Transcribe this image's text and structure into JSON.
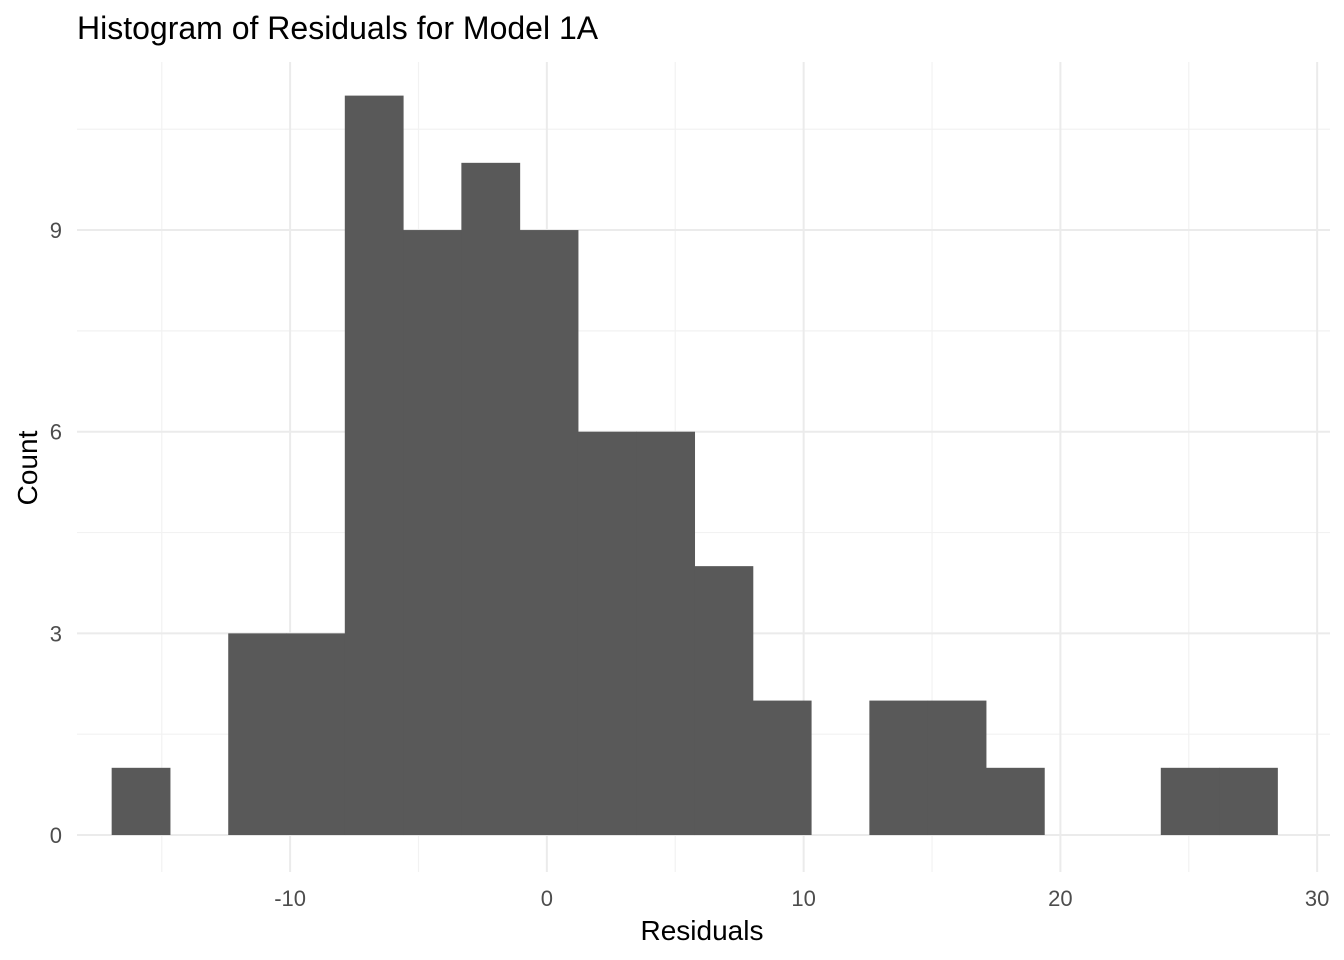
{
  "chart_data": {
    "type": "bar",
    "title": "Histogram of Residuals for Model 1A",
    "xlabel": "Residuals",
    "ylabel": "Count",
    "xlim": [
      -18.3,
      30.5
    ],
    "ylim": [
      -0.55,
      11.5
    ],
    "x_ticks": [
      -10,
      0,
      10,
      20,
      30
    ],
    "x_tick_labels": [
      "-10",
      "0",
      "10",
      "20",
      "30"
    ],
    "y_ticks": [
      0,
      3,
      6,
      9
    ],
    "y_tick_labels": [
      "0",
      "3",
      "6",
      "9"
    ],
    "grid": true,
    "bar_color": "#595959",
    "bins": [
      {
        "x0": -16.95,
        "x1": -14.68,
        "count": 1
      },
      {
        "x0": -14.68,
        "x1": -12.41,
        "count": 0
      },
      {
        "x0": -12.41,
        "x1": -10.14,
        "count": 3
      },
      {
        "x0": -10.14,
        "x1": -7.87,
        "count": 3
      },
      {
        "x0": -7.87,
        "x1": -5.6,
        "count": 11
      },
      {
        "x0": -5.6,
        "x1": -3.33,
        "count": 9
      },
      {
        "x0": -3.33,
        "x1": -1.06,
        "count": 10
      },
      {
        "x0": -1.06,
        "x1": 1.21,
        "count": 9
      },
      {
        "x0": 1.21,
        "x1": 3.48,
        "count": 6
      },
      {
        "x0": 3.48,
        "x1": 5.75,
        "count": 6
      },
      {
        "x0": 5.75,
        "x1": 8.02,
        "count": 4
      },
      {
        "x0": 8.02,
        "x1": 10.29,
        "count": 2
      },
      {
        "x0": 10.29,
        "x1": 12.56,
        "count": 0
      },
      {
        "x0": 12.56,
        "x1": 14.83,
        "count": 2
      },
      {
        "x0": 14.83,
        "x1": 17.1,
        "count": 2
      },
      {
        "x0": 17.1,
        "x1": 19.37,
        "count": 1
      },
      {
        "x0": 19.37,
        "x1": 21.64,
        "count": 0
      },
      {
        "x0": 21.64,
        "x1": 23.91,
        "count": 0
      },
      {
        "x0": 23.91,
        "x1": 26.18,
        "count": 1
      },
      {
        "x0": 26.18,
        "x1": 28.45,
        "count": 1
      }
    ]
  }
}
